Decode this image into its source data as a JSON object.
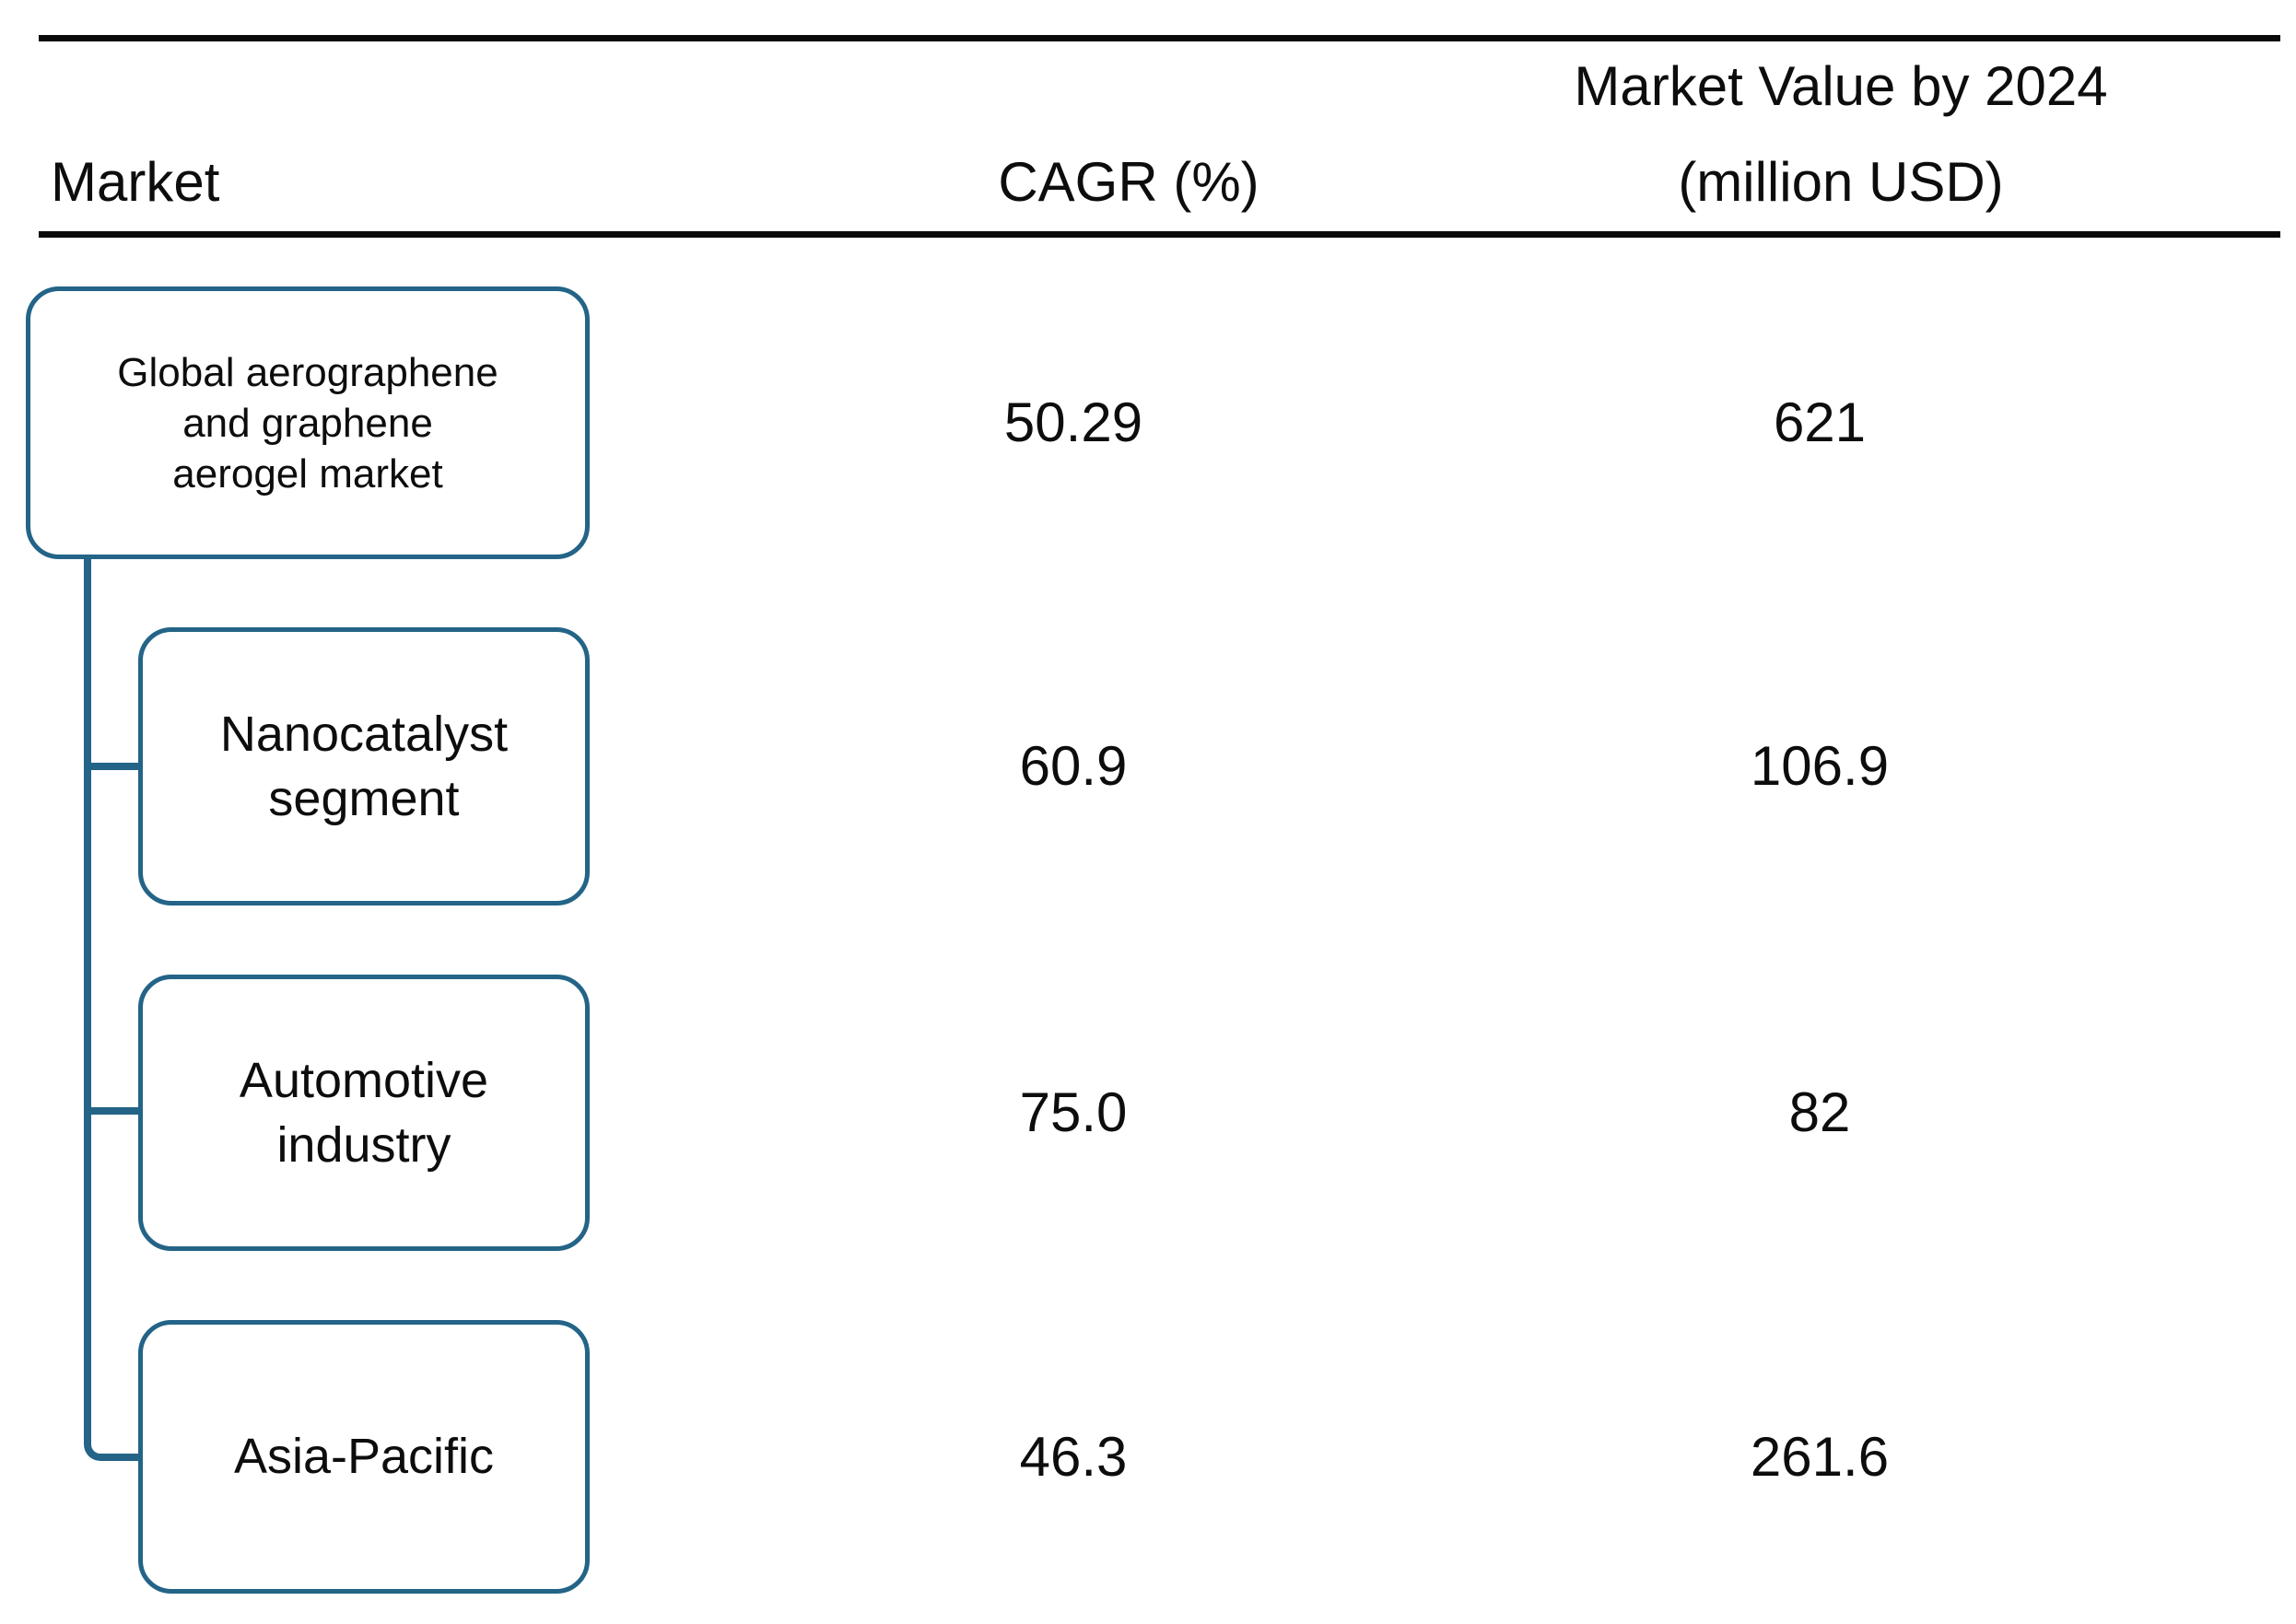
{
  "header": {
    "col1": "Market",
    "col2": "CAGR (%)",
    "col3_line1": "Market Value by 2024",
    "col3_line2": "(million USD)"
  },
  "rows": [
    {
      "market_display": "Global aerographene\nand graphene\naerogel market",
      "cagr": "50.29",
      "value": "621"
    },
    {
      "market_display": "Nanocatalyst\nsegment",
      "cagr": "60.9",
      "value": "106.9"
    },
    {
      "market_display": "Automotive\nindustry",
      "cagr": "75.0",
      "value": "82"
    },
    {
      "market_display": "Asia-Pacific",
      "cagr": "46.3",
      "value": "261.6"
    }
  ],
  "colors": {
    "box_border": "#236487",
    "rule": "#0a0a0a",
    "text": "#0d0d0d"
  },
  "chart_data": {
    "type": "table",
    "columns": [
      "Market",
      "CAGR (%)",
      "Market Value by 2024 (million USD)"
    ],
    "rows": [
      [
        "Global aerographene and graphene aerogel market",
        50.29,
        621
      ],
      [
        "Nanocatalyst segment",
        60.9,
        106.9
      ],
      [
        "Automotive industry",
        75.0,
        82
      ],
      [
        "Asia-Pacific",
        46.3,
        261.6
      ]
    ],
    "hierarchy": {
      "root": "Global aerographene and graphene aerogel market",
      "children": [
        "Nanocatalyst segment",
        "Automotive industry",
        "Asia-Pacific"
      ]
    },
    "layout_hints": {
      "first_column_rendered_as": "tree of rounded boxes with connector lines",
      "rules": "horizontal black rules above and below header row"
    }
  }
}
